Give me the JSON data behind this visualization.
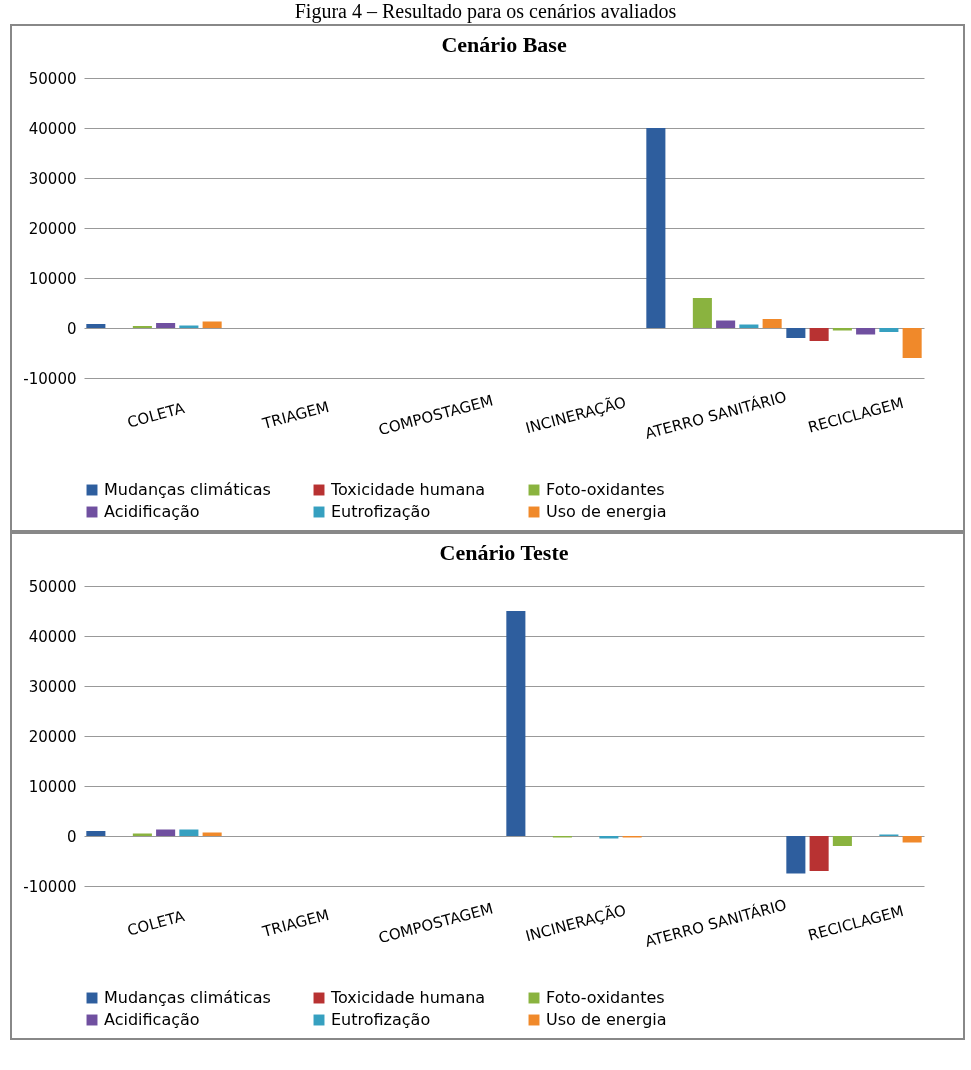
{
  "chart_data": [
    {
      "type": "bar",
      "title": "Cenário Base",
      "annotations": [
        "Figura 4 – Resultado para os cenários avaliados"
      ],
      "categories": [
        "COLETA",
        "TRIAGEM",
        "COMPOSTAGEM",
        "INCINERAÇÃO",
        "ATERRO SANITÁRIO",
        "RECICLAGEM"
      ],
      "series": [
        {
          "name": "Mudanças climáticas",
          "color": "#2e5e9e",
          "values": [
            800,
            0,
            0,
            0,
            40000,
            -2000
          ]
        },
        {
          "name": "Toxicidade humana",
          "color": "#b83232",
          "values": [
            0,
            0,
            0,
            0,
            0,
            -2600
          ]
        },
        {
          "name": "Foto-oxidantes",
          "color": "#8ab33f",
          "values": [
            400,
            0,
            0,
            0,
            6000,
            -500
          ]
        },
        {
          "name": "Acidificação",
          "color": "#7050a0",
          "values": [
            1000,
            0,
            0,
            0,
            1500,
            -1300
          ]
        },
        {
          "name": "Eutrofização",
          "color": "#36a0c0",
          "values": [
            500,
            0,
            0,
            0,
            700,
            -800
          ]
        },
        {
          "name": "Uso de energia",
          "color": "#f0892a",
          "values": [
            1300,
            0,
            0,
            0,
            1800,
            -6000
          ]
        }
      ],
      "ylim": [
        -10000,
        50000
      ],
      "yticks": [
        -10000,
        0,
        10000,
        20000,
        30000,
        40000,
        50000
      ],
      "grid": "y",
      "legend": "bottom"
    },
    {
      "type": "bar",
      "title": "Cenário Teste",
      "categories": [
        "COLETA",
        "TRIAGEM",
        "COMPOSTAGEM",
        "INCINERAÇÃO",
        "ATERRO SANITÁRIO",
        "RECICLAGEM"
      ],
      "series": [
        {
          "name": "Mudanças climáticas",
          "color": "#2e5e9e",
          "values": [
            1000,
            0,
            0,
            45000,
            0,
            -7500
          ]
        },
        {
          "name": "Toxicidade humana",
          "color": "#b83232",
          "values": [
            0,
            0,
            0,
            0,
            0,
            -7000
          ]
        },
        {
          "name": "Foto-oxidantes",
          "color": "#8ab33f",
          "values": [
            500,
            0,
            0,
            -300,
            0,
            -2000
          ]
        },
        {
          "name": "Acidificação",
          "color": "#7050a0",
          "values": [
            1300,
            0,
            0,
            0,
            0,
            0
          ]
        },
        {
          "name": "Eutrofização",
          "color": "#36a0c0",
          "values": [
            1300,
            0,
            0,
            -500,
            0,
            300
          ]
        },
        {
          "name": "Uso de energia",
          "color": "#f0892a",
          "values": [
            700,
            0,
            0,
            -300,
            0,
            -1300
          ]
        }
      ],
      "ylim": [
        -10000,
        50000
      ],
      "yticks": [
        -10000,
        0,
        10000,
        20000,
        30000,
        40000,
        50000
      ],
      "grid": "y",
      "legend": "bottom"
    }
  ]
}
